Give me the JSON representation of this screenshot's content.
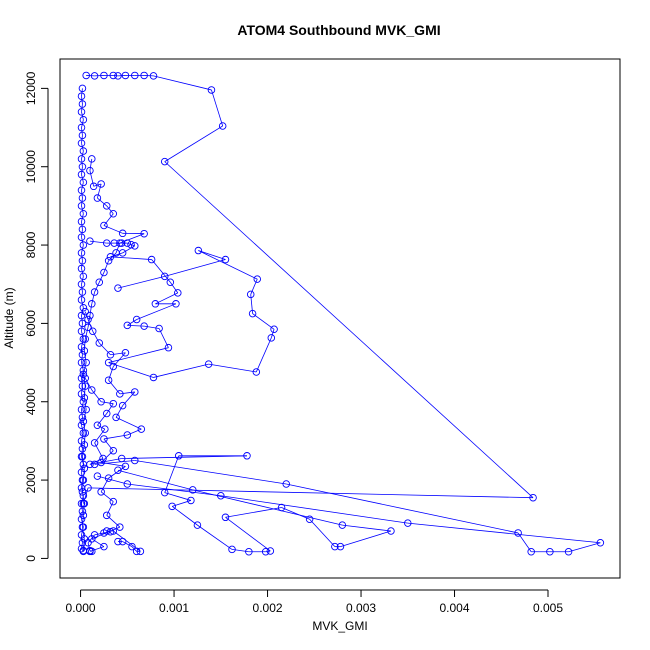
{
  "chart_data": {
    "type": "scatter",
    "title": "ATOM4 Southbound MVK_GMI",
    "xlabel": "MVK_GMI",
    "ylabel": "Altitude (m)",
    "xlim": [
      -0.00022,
      0.00577
    ],
    "ylim": [
      -500,
      12750
    ],
    "xticks": [
      0.0,
      0.001,
      0.002,
      0.003,
      0.004,
      0.005
    ],
    "xtick_labels": [
      "0.000",
      "0.001",
      "0.002",
      "0.003",
      "0.004",
      "0.005"
    ],
    "yticks": [
      0,
      2000,
      4000,
      6000,
      8000,
      10000,
      12000
    ],
    "ytick_labels": [
      "0",
      "2000",
      "4000",
      "6000",
      "8000",
      "10000",
      "12000"
    ],
    "grid": false,
    "legend": "none",
    "color": "#0000ff",
    "marker": "open-circle",
    "series": [
      {
        "points": [
          [
            6e-05,
            12330
          ],
          [
            0.00015,
            12320
          ],
          [
            0.00025,
            12330
          ],
          [
            0.00035,
            12330
          ],
          [
            0.0004,
            12320
          ],
          [
            0.00048,
            12330
          ],
          [
            0.00058,
            12330
          ],
          [
            0.00068,
            12330
          ],
          [
            0.00078,
            12320
          ],
          [
            0.0014,
            11960
          ],
          [
            0.00152,
            11040
          ],
          [
            0.0009,
            10130
          ],
          [
            0.00484,
            1550
          ],
          [
            8e-05,
            1800
          ],
          [
            3e-05,
            1400
          ]
        ]
      },
      {
        "points": [
          [
            2e-05,
            12000
          ],
          [
            1e-05,
            11800
          ],
          [
            2e-05,
            11600
          ],
          [
            1e-05,
            11400
          ],
          [
            3e-05,
            11200
          ],
          [
            1e-05,
            11000
          ],
          [
            2e-05,
            10800
          ],
          [
            1e-05,
            10600
          ],
          [
            3e-05,
            10400
          ],
          [
            1e-05,
            10200
          ],
          [
            2e-05,
            10000
          ],
          [
            1e-05,
            9800
          ],
          [
            3e-05,
            9600
          ],
          [
            1e-05,
            9400
          ],
          [
            2e-05,
            9200
          ],
          [
            1e-05,
            9000
          ],
          [
            3e-05,
            8800
          ],
          [
            1e-05,
            8600
          ],
          [
            2e-05,
            8400
          ],
          [
            1e-05,
            8200
          ],
          [
            3e-05,
            8000
          ],
          [
            1e-05,
            7800
          ],
          [
            2e-05,
            7600
          ],
          [
            1e-05,
            7400
          ],
          [
            3e-05,
            7200
          ],
          [
            1e-05,
            7000
          ],
          [
            2e-05,
            6800
          ],
          [
            1e-05,
            6600
          ],
          [
            3e-05,
            6400
          ],
          [
            1e-05,
            6200
          ],
          [
            2e-05,
            6000
          ],
          [
            1e-05,
            5800
          ],
          [
            3e-05,
            5600
          ],
          [
            1e-05,
            5400
          ],
          [
            2e-05,
            5200
          ],
          [
            1e-05,
            5000
          ],
          [
            3e-05,
            4800
          ],
          [
            1e-05,
            4600
          ],
          [
            2e-05,
            4400
          ],
          [
            1e-05,
            4200
          ],
          [
            3e-05,
            4000
          ],
          [
            1e-05,
            3800
          ],
          [
            2e-05,
            3600
          ],
          [
            1e-05,
            3400
          ],
          [
            3e-05,
            3200
          ],
          [
            1e-05,
            3000
          ],
          [
            2e-05,
            2800
          ],
          [
            1e-05,
            2600
          ],
          [
            3e-05,
            2400
          ],
          [
            1e-05,
            2200
          ],
          [
            2e-05,
            2000
          ],
          [
            1e-05,
            1800
          ],
          [
            3e-05,
            1600
          ],
          [
            1e-05,
            1400
          ],
          [
            2e-05,
            1200
          ],
          [
            1e-05,
            1000
          ],
          [
            3e-05,
            800
          ],
          [
            1e-05,
            600
          ],
          [
            2e-05,
            400
          ],
          [
            1e-05,
            250
          ],
          [
            3e-05,
            180
          ]
        ]
      },
      {
        "points": [
          [
            0.00012,
            10200
          ],
          [
            0.0001,
            9900
          ],
          [
            0.00014,
            9500
          ],
          [
            0.00022,
            9560
          ],
          [
            0.00018,
            9200
          ],
          [
            0.00028,
            9000
          ],
          [
            0.00035,
            8800
          ],
          [
            0.00025,
            8500
          ],
          [
            0.00045,
            8300
          ],
          [
            0.00068,
            8290
          ],
          [
            0.00042,
            8050
          ],
          [
            0.00038,
            7800
          ],
          [
            0.0003,
            7600
          ],
          [
            0.00025,
            7300
          ],
          [
            0.0002,
            7050
          ],
          [
            0.00015,
            6800
          ],
          [
            0.00012,
            6500
          ],
          [
            0.0001,
            6200
          ],
          [
            8e-05,
            5900
          ],
          [
            5e-05,
            5600
          ],
          [
            4e-05,
            5300
          ],
          [
            6e-05,
            5000
          ],
          [
            3e-05,
            4700
          ],
          [
            5e-05,
            4400
          ],
          [
            4e-05,
            4100
          ],
          [
            6e-05,
            3800
          ],
          [
            3e-05,
            3500
          ],
          [
            5e-05,
            3200
          ],
          [
            4e-05,
            2900
          ],
          [
            2e-05,
            2600
          ],
          [
            4e-05,
            2300
          ],
          [
            3e-05,
            2000
          ],
          [
            2e-05,
            1700
          ],
          [
            4e-05,
            1400
          ],
          [
            3e-05,
            1100
          ],
          [
            2e-05,
            800
          ],
          [
            4e-05,
            500
          ],
          [
            3e-05,
            200
          ]
        ]
      },
      {
        "points": [
          [
            0.0001,
            8100
          ],
          [
            0.00028,
            8050
          ],
          [
            0.00036,
            8050
          ],
          [
            0.00044,
            8050
          ],
          [
            0.0005,
            8050
          ],
          [
            0.00054,
            8010
          ],
          [
            0.00058,
            7980
          ],
          [
            0.00045,
            7800
          ],
          [
            0.00032,
            7700
          ],
          [
            0.00076,
            7630
          ],
          [
            0.00096,
            7050
          ],
          [
            0.00104,
            6780
          ],
          [
            0.0008,
            6500
          ],
          [
            0.00102,
            6500
          ],
          [
            0.0006,
            6100
          ],
          [
            0.0005,
            5950
          ],
          [
            0.00068,
            5930
          ],
          [
            0.00084,
            5870
          ],
          [
            0.00094,
            5380
          ],
          [
            0.0003,
            5000
          ],
          [
            0.00078,
            4620
          ],
          [
            0.00137,
            4960
          ],
          [
            0.00188,
            4760
          ],
          [
            0.00204,
            5630
          ],
          [
            0.00207,
            5850
          ],
          [
            0.00184,
            6250
          ],
          [
            0.00182,
            6740
          ],
          [
            0.00189,
            7130
          ],
          [
            0.00126,
            7860
          ],
          [
            0.00155,
            7630
          ],
          [
            0.0009,
            7200
          ],
          [
            0.0004,
            6900
          ]
        ]
      },
      {
        "points": [
          [
            5e-05,
            6300
          ],
          [
            8e-05,
            6100
          ],
          [
            0.00013,
            5800
          ],
          [
            0.0002,
            5500
          ],
          [
            0.00032,
            5200
          ],
          [
            0.00048,
            5250
          ],
          [
            0.00035,
            4900
          ],
          [
            0.0003,
            4550
          ],
          [
            0.00042,
            4200
          ],
          [
            0.00058,
            4250
          ],
          [
            0.00045,
            3900
          ],
          [
            0.00038,
            3600
          ],
          [
            0.00065,
            3300
          ],
          [
            0.0005,
            3150
          ],
          [
            0.00025,
            3050
          ],
          [
            0.00035,
            2750
          ],
          [
            0.00022,
            2450
          ],
          [
            0.00048,
            2350
          ],
          [
            0.0003,
            2050
          ],
          [
            0.00022,
            1700
          ],
          [
            0.00035,
            1450
          ],
          [
            0.00028,
            1100
          ],
          [
            0.00042,
            800
          ],
          [
            0.00012,
            500
          ],
          [
            0.00025,
            300
          ],
          [
            0.0001,
            180
          ]
        ]
      },
      {
        "points": [
          [
            5e-05,
            4600
          ],
          [
            0.00012,
            4300
          ],
          [
            0.00022,
            4000
          ],
          [
            0.00035,
            3950
          ],
          [
            0.00028,
            3700
          ],
          [
            0.00018,
            3400
          ],
          [
            0.00026,
            3300
          ],
          [
            0.00015,
            2950
          ],
          [
            0.00024,
            2550
          ],
          [
            0.0001,
            2400
          ],
          [
            0.00044,
            2550
          ],
          [
            0.00178,
            2620
          ],
          [
            0.00105,
            2620
          ],
          [
            0.0009,
            1680
          ],
          [
            0.00118,
            1480
          ],
          [
            0.00098,
            1330
          ],
          [
            0.00125,
            850
          ],
          [
            0.00162,
            230
          ],
          [
            0.0018,
            170
          ],
          [
            0.00198,
            170
          ],
          [
            0.00203,
            190
          ],
          [
            0.00155,
            1050
          ],
          [
            0.00215,
            1300
          ],
          [
            0.00245,
            1000
          ],
          [
            0.00272,
            300
          ],
          [
            0.00278,
            300
          ],
          [
            0.00332,
            700
          ],
          [
            0.0028,
            850
          ],
          [
            0.0012,
            1750
          ],
          [
            0.0004,
            2250
          ]
        ]
      },
      {
        "points": [
          [
            0.00015,
            2400
          ],
          [
            0.00058,
            2500
          ],
          [
            0.0022,
            1900
          ],
          [
            0.00468,
            650
          ],
          [
            0.00482,
            170
          ],
          [
            0.00502,
            170
          ],
          [
            0.00522,
            170
          ],
          [
            0.00556,
            400
          ],
          [
            0.0035,
            900
          ],
          [
            0.0015,
            1600
          ],
          [
            0.0005,
            1900
          ],
          [
            0.00018,
            2100
          ]
        ]
      },
      {
        "points": [
          [
            0.0004,
            430
          ],
          [
            0.00045,
            430
          ],
          [
            0.00055,
            300
          ],
          [
            0.0006,
            180
          ],
          [
            0.00064,
            180
          ],
          [
            0.00035,
            700
          ],
          [
            0.00028,
            700
          ],
          [
            0.00032,
            680
          ],
          [
            0.00025,
            650
          ],
          [
            0.00015,
            600
          ],
          [
            8e-05,
            400
          ],
          [
            0.0001,
            200
          ],
          [
            0.00012,
            180
          ]
        ]
      }
    ]
  }
}
